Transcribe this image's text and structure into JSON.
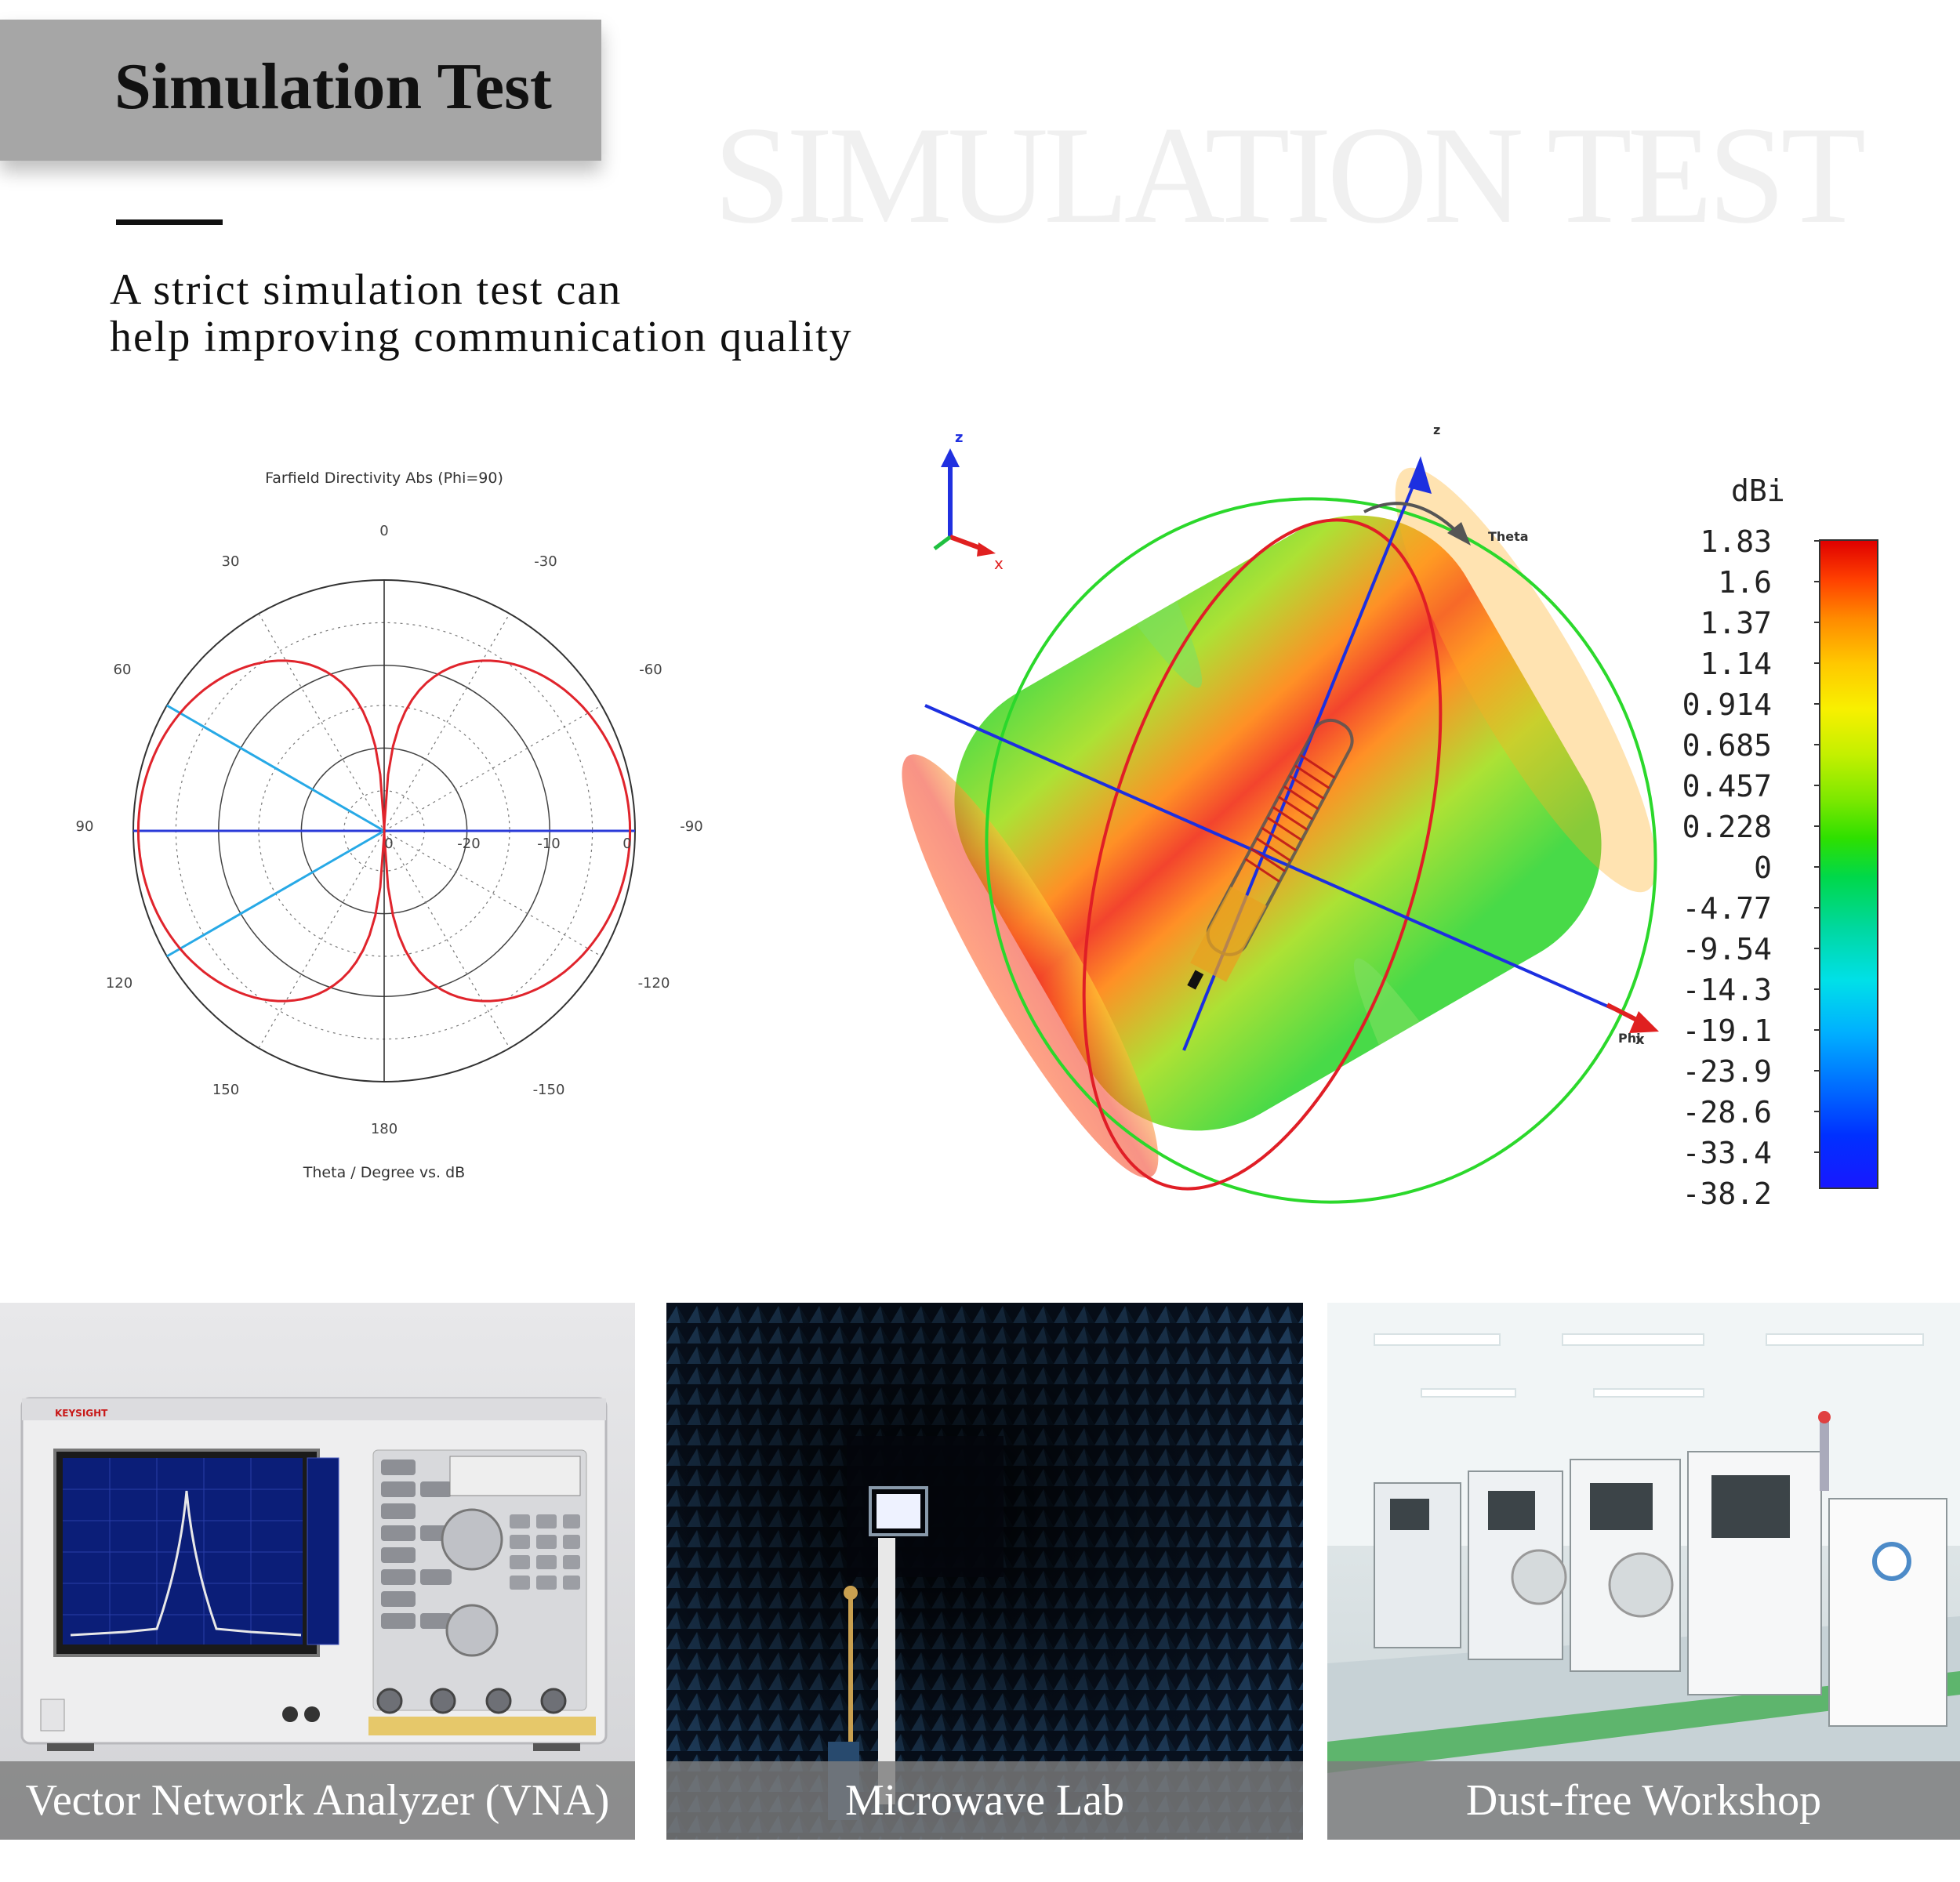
{
  "header": {
    "title": "Simulation Test",
    "watermark": "SIMULATION TEST",
    "subtitle_lines": [
      "A strict simulation test can",
      "help improving communication quality"
    ]
  },
  "polar_chart": {
    "title": "Farfield Directivity Abs (Phi=90)",
    "xlabel": "Theta / Degree vs. dB",
    "angle_labels": {
      "top": "0",
      "bottom": "180",
      "left": "90",
      "right": "-90",
      "ul30": "30",
      "ur30": "-30",
      "ul60": "60",
      "ur60": "-60",
      "ll120": "120",
      "lr120": "-120",
      "ll150": "150",
      "lr150": "-150"
    },
    "radial_labels": [
      "-20",
      "-10",
      "0"
    ],
    "radial_center_label": "0",
    "chart_data": {
      "type": "polar",
      "title": "Farfield Directivity Abs (Phi=90)",
      "xlabel": "Theta / Degree vs. dB",
      "radial_range_db": [
        -30,
        0
      ],
      "series": [
        {
          "name": "",
          "pattern": "dipole",
          "max_db": 0,
          "null_at_theta_deg": [
            0,
            180
          ],
          "color": "#e0242c"
        }
      ],
      "markers_deg": [
        60,
        120
      ],
      "colors": {
        "pattern": "#e0242c",
        "markers": "#27a9e6",
        "axis": "#2a3ad8"
      }
    }
  },
  "pattern3d": {
    "axis_labels": {
      "z_small": "z",
      "x_small": "x",
      "z": "z",
      "theta": "Theta",
      "phi": "Phi",
      "x": "x"
    }
  },
  "colorbar": {
    "unit": "dBi",
    "labels": [
      "1.83",
      "1.6",
      "1.37",
      "1.14",
      "0.914",
      "0.685",
      "0.457",
      "0.228",
      "0",
      "-4.77",
      "-9.54",
      "-14.3",
      "-19.1",
      "-23.9",
      "-28.6",
      "-33.4",
      "-38.2"
    ]
  },
  "panels": [
    {
      "caption": "Vector Network Analyzer (VNA)",
      "brand": "KEYSIGHT"
    },
    {
      "caption": "Microwave Lab"
    },
    {
      "caption": "Dust-free Workshop"
    }
  ]
}
